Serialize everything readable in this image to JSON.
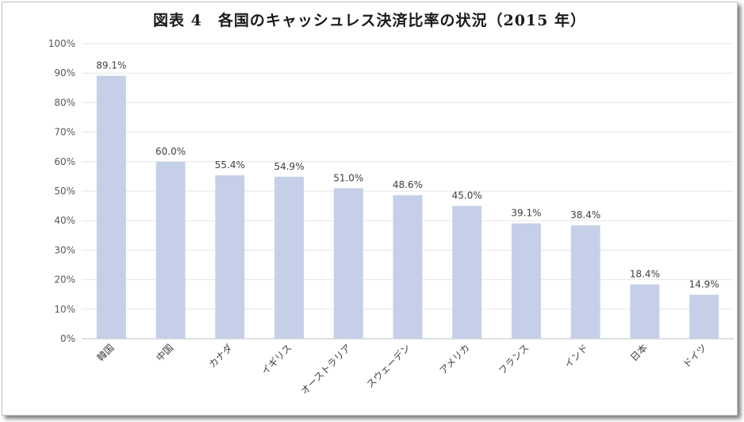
{
  "chart_data": {
    "type": "bar",
    "title": "図表 4　各国のキャッシュレス決済比率の状況（2015 年）",
    "xlabel": "",
    "ylabel": "",
    "categories": [
      "韓国",
      "中国",
      "カナダ",
      "イギリス",
      "オーストラリア",
      "スウェーデン",
      "アメリカ",
      "フランス",
      "インド",
      "日本",
      "ドイツ"
    ],
    "values": [
      89.1,
      60.0,
      55.4,
      54.9,
      51.0,
      48.6,
      45.0,
      39.1,
      38.4,
      18.4,
      14.9
    ],
    "data_labels": [
      "89.1%",
      "60.0%",
      "55.4%",
      "54.9%",
      "51.0%",
      "48.6%",
      "45.0%",
      "39.1%",
      "38.4%",
      "18.4%",
      "14.9%"
    ],
    "y_ticks": [
      "0%",
      "10%",
      "20%",
      "30%",
      "40%",
      "50%",
      "60%",
      "70%",
      "80%",
      "90%",
      "100%"
    ],
    "ylim": [
      0,
      100
    ],
    "grid": true,
    "bar_color": "#c5d0e8",
    "grid_color": "#e6e6e6"
  }
}
